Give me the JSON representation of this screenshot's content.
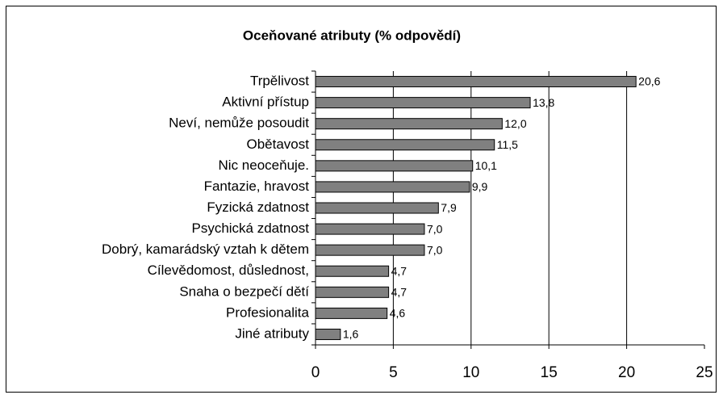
{
  "chart_data": {
    "type": "bar",
    "orientation": "horizontal",
    "title": "Oceňované atributy (% odpovědí)",
    "categories": [
      "Trpělivost",
      "Aktivní přístup",
      "Neví, nemůže posoudit",
      "Obětavost",
      "Nic neoceňuje.",
      "Fantazie, hravost",
      "Fyzická zdatnost",
      "Psychická zdatnost",
      "Dobrý, kamarádský vztah k dětem",
      "Cílevědomost, důslednost,",
      "Snaha o bezpečí dětí",
      "Profesionalita",
      "Jiné atributy"
    ],
    "values": [
      20.6,
      13.8,
      12.0,
      11.5,
      10.1,
      9.9,
      7.9,
      7.0,
      7.0,
      4.7,
      4.7,
      4.6,
      1.6
    ],
    "value_labels": [
      "20,6",
      "13,8",
      "12,0",
      "11,5",
      "10,1",
      "9,9",
      "7,9",
      "7,0",
      "7,0",
      "4,7",
      "4,7",
      "4,6",
      "1,6"
    ],
    "color": "#808080",
    "xlim": [
      0,
      25
    ],
    "xticks": [
      0,
      5,
      10,
      15,
      20,
      25
    ],
    "grid": true
  }
}
